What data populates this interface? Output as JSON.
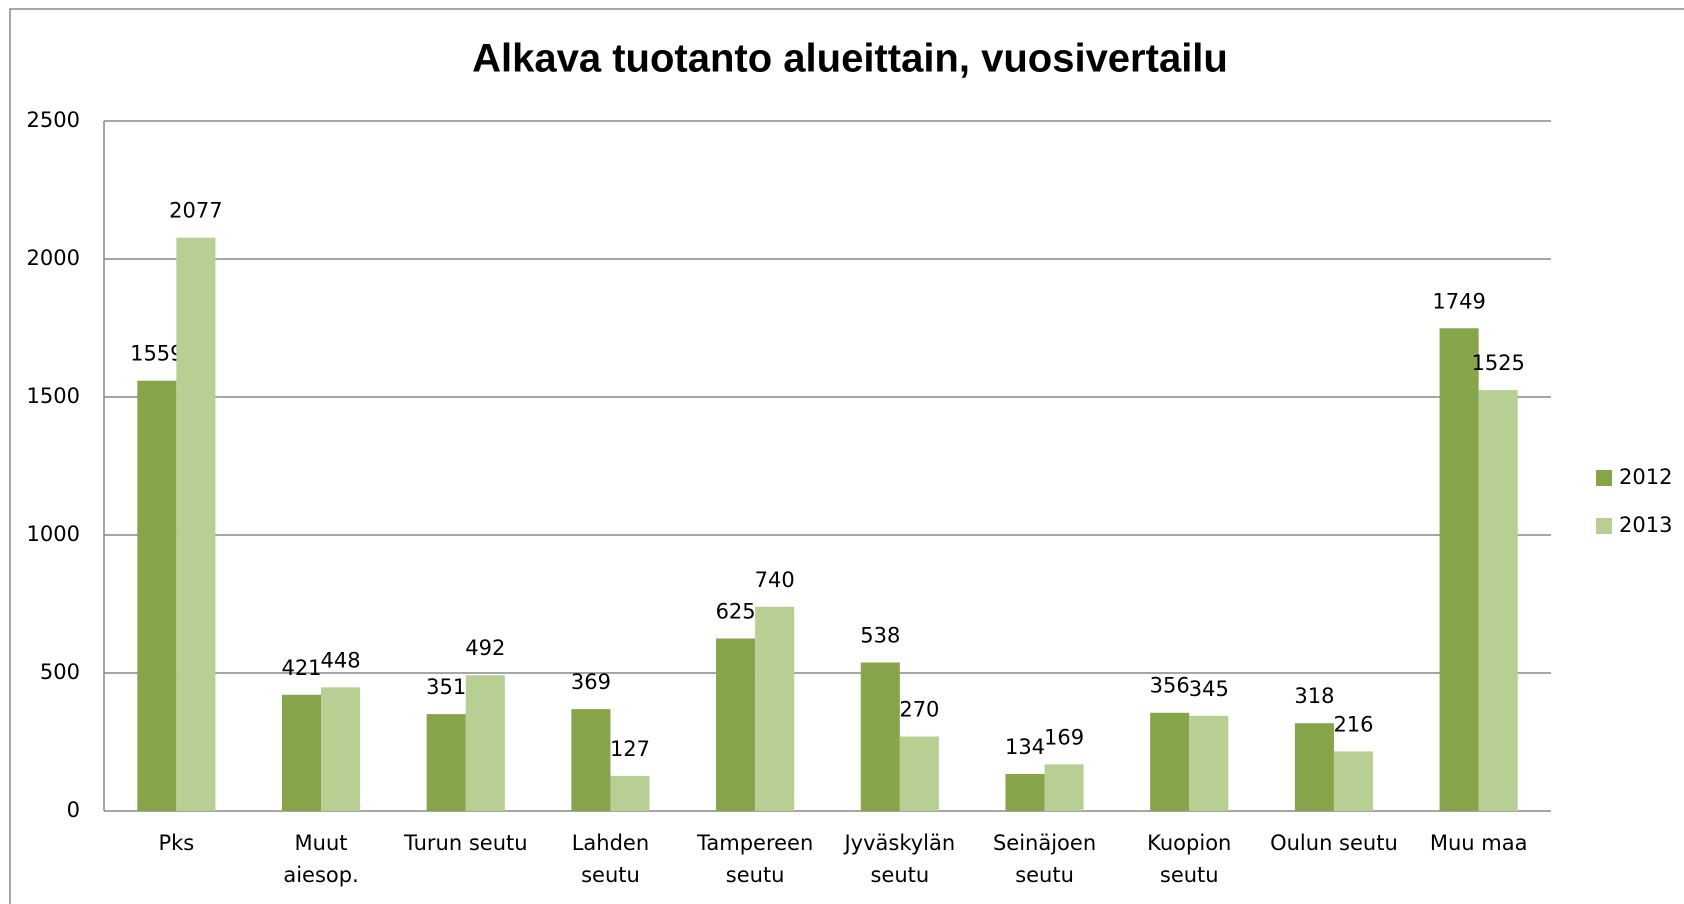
{
  "chart_data": {
    "type": "bar",
    "title": "Alkava tuotanto alueittain, vuosivertailu",
    "categories": [
      "Pks",
      "Muut aiesop.",
      "Turun seutu",
      "Lahden seutu",
      "Tampereen seutu",
      "Jyväskylän seutu",
      "Seinäjoen seutu",
      "Kuopion seutu",
      "Oulun seutu",
      "Muu maa"
    ],
    "series": [
      {
        "name": "2012",
        "color": "#86a44a",
        "values": [
          1559,
          421,
          351,
          369,
          625,
          538,
          134,
          356,
          318,
          1749
        ]
      },
      {
        "name": "2013",
        "color": "#b8cf94",
        "values": [
          2077,
          448,
          492,
          127,
          740,
          270,
          169,
          345,
          216,
          1525
        ]
      }
    ],
    "ylim": [
      0,
      2500
    ],
    "yticks": [
      0,
      500,
      1000,
      1500,
      2000,
      2500
    ],
    "grid": true,
    "legend": "right"
  }
}
